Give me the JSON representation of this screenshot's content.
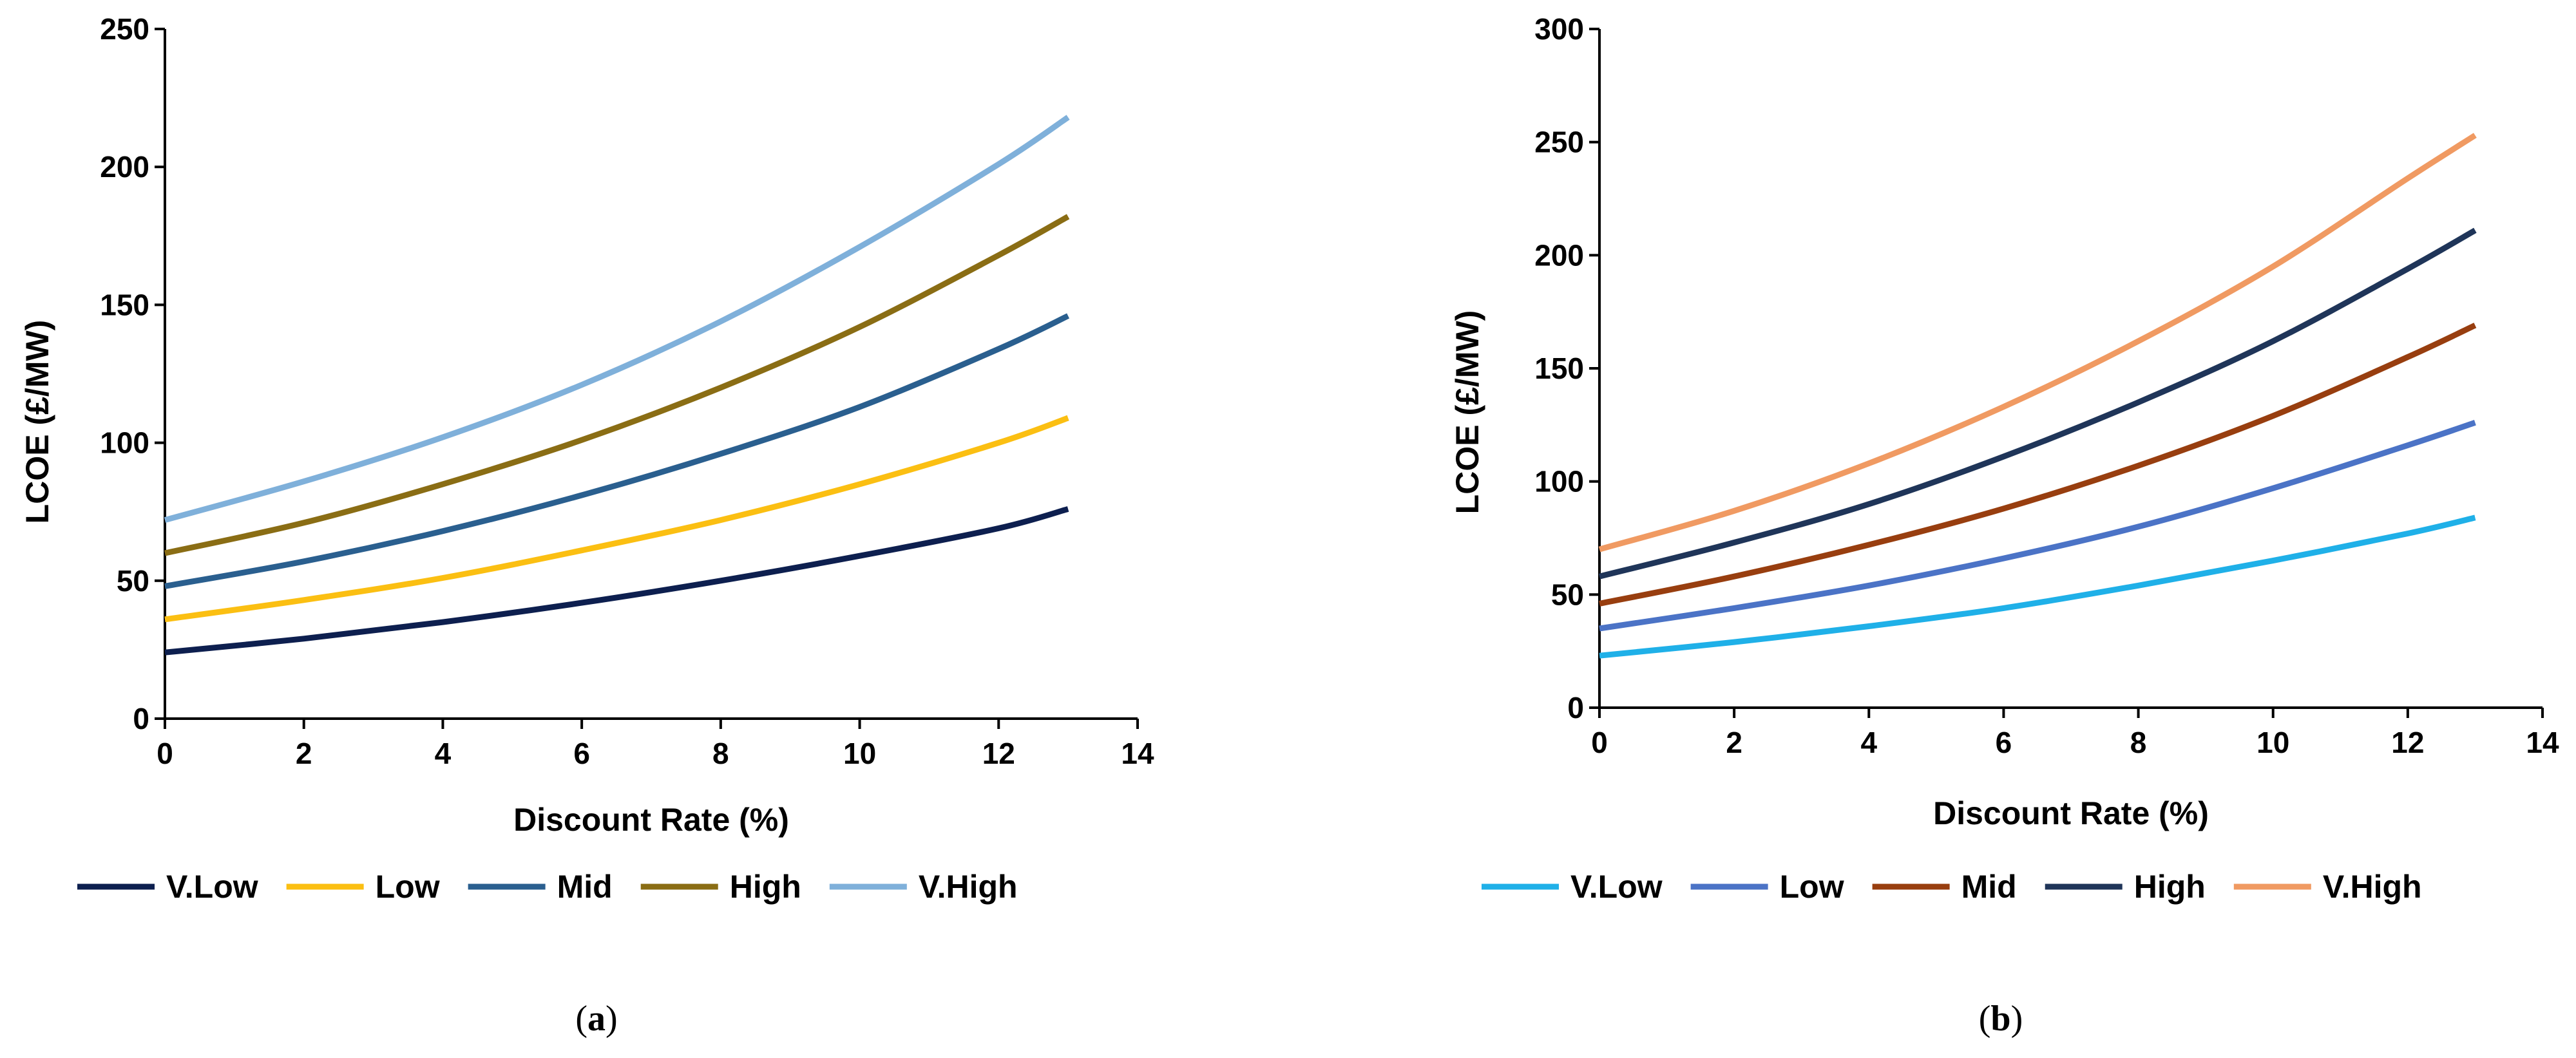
{
  "chart_data": [
    {
      "id": "a",
      "caption": "a",
      "type": "line",
      "title": "",
      "xlabel": "Discount Rate (%)",
      "ylabel": "LCOE (£/MW)",
      "xlim": [
        0,
        14
      ],
      "ylim": [
        0,
        250
      ],
      "xticks": [
        0,
        2,
        4,
        6,
        8,
        10,
        12,
        14
      ],
      "yticks": [
        0,
        50,
        100,
        150,
        200,
        250
      ],
      "grid": false,
      "legend_position": "bottom",
      "x": [
        0,
        2,
        4,
        6,
        8,
        10,
        12,
        13
      ],
      "series": [
        {
          "name": "V.Low",
          "color": "#0d1f4f",
          "values": [
            24,
            29,
            35,
            42,
            50,
            59,
            69,
            76
          ]
        },
        {
          "name": "Low",
          "color": "#fbbf12",
          "values": [
            36,
            43,
            51,
            61,
            72,
            85,
            100,
            109
          ]
        },
        {
          "name": "Mid",
          "color": "#2a5f8f",
          "values": [
            48,
            57,
            68,
            81,
            96,
            113,
            134,
            146
          ]
        },
        {
          "name": "High",
          "color": "#8a6d14",
          "values": [
            60,
            71,
            85,
            101,
            120,
            142,
            168,
            182
          ]
        },
        {
          "name": "V.High",
          "color": "#7fb0da",
          "values": [
            72,
            86,
            102,
            121,
            144,
            171,
            201,
            218
          ]
        }
      ]
    },
    {
      "id": "b",
      "caption": "b",
      "type": "line",
      "title": "",
      "xlabel": "Discount Rate (%)",
      "ylabel": "LCOE (£/MW)",
      "xlim": [
        0,
        14
      ],
      "ylim": [
        0,
        300
      ],
      "xticks": [
        0,
        2,
        4,
        6,
        8,
        10,
        12,
        14
      ],
      "yticks": [
        0,
        50,
        100,
        150,
        200,
        250,
        300
      ],
      "grid": false,
      "legend_position": "bottom",
      "x": [
        0,
        2,
        4,
        6,
        8,
        10,
        12,
        13
      ],
      "series": [
        {
          "name": "V.Low",
          "color": "#1fb0e8",
          "values": [
            23,
            29,
            36,
            44,
            54,
            65,
            77,
            84
          ]
        },
        {
          "name": "Low",
          "color": "#4b73c6",
          "values": [
            35,
            44,
            54,
            66,
            80,
            97,
            116,
            126
          ]
        },
        {
          "name": "Mid",
          "color": "#983e0f",
          "values": [
            46,
            58,
            72,
            88,
            107,
            129,
            155,
            169
          ]
        },
        {
          "name": "High",
          "color": "#1f3559",
          "values": [
            58,
            73,
            90,
            111,
            135,
            162,
            194,
            211
          ]
        },
        {
          "name": "V.High",
          "color": "#f09a62",
          "values": [
            70,
            87,
            108,
            133,
            162,
            195,
            234,
            253
          ]
        }
      ]
    }
  ]
}
